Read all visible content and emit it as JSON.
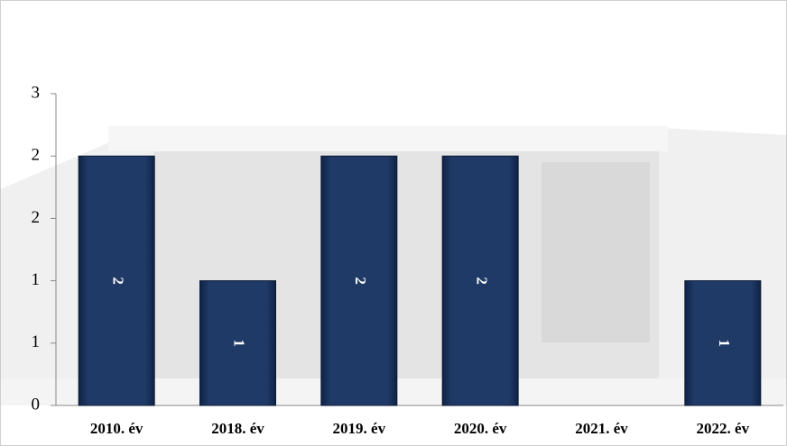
{
  "chart_data": {
    "type": "bar",
    "categories": [
      "2010. év",
      "2018. év",
      "2019. év",
      "2020. év",
      "2021. év",
      "2022. év"
    ],
    "values": [
      2,
      1,
      2,
      2,
      null,
      1
    ],
    "color": "#1c3461",
    "ylim": [
      0,
      2.5
    ],
    "yticks": [
      0,
      {
        "value": 0.5,
        "label": "1"
      },
      1,
      {
        "value": 1.5,
        "label": "2"
      },
      2,
      {
        "value": 2.5,
        "label": "3"
      }
    ],
    "data_labels": true
  }
}
